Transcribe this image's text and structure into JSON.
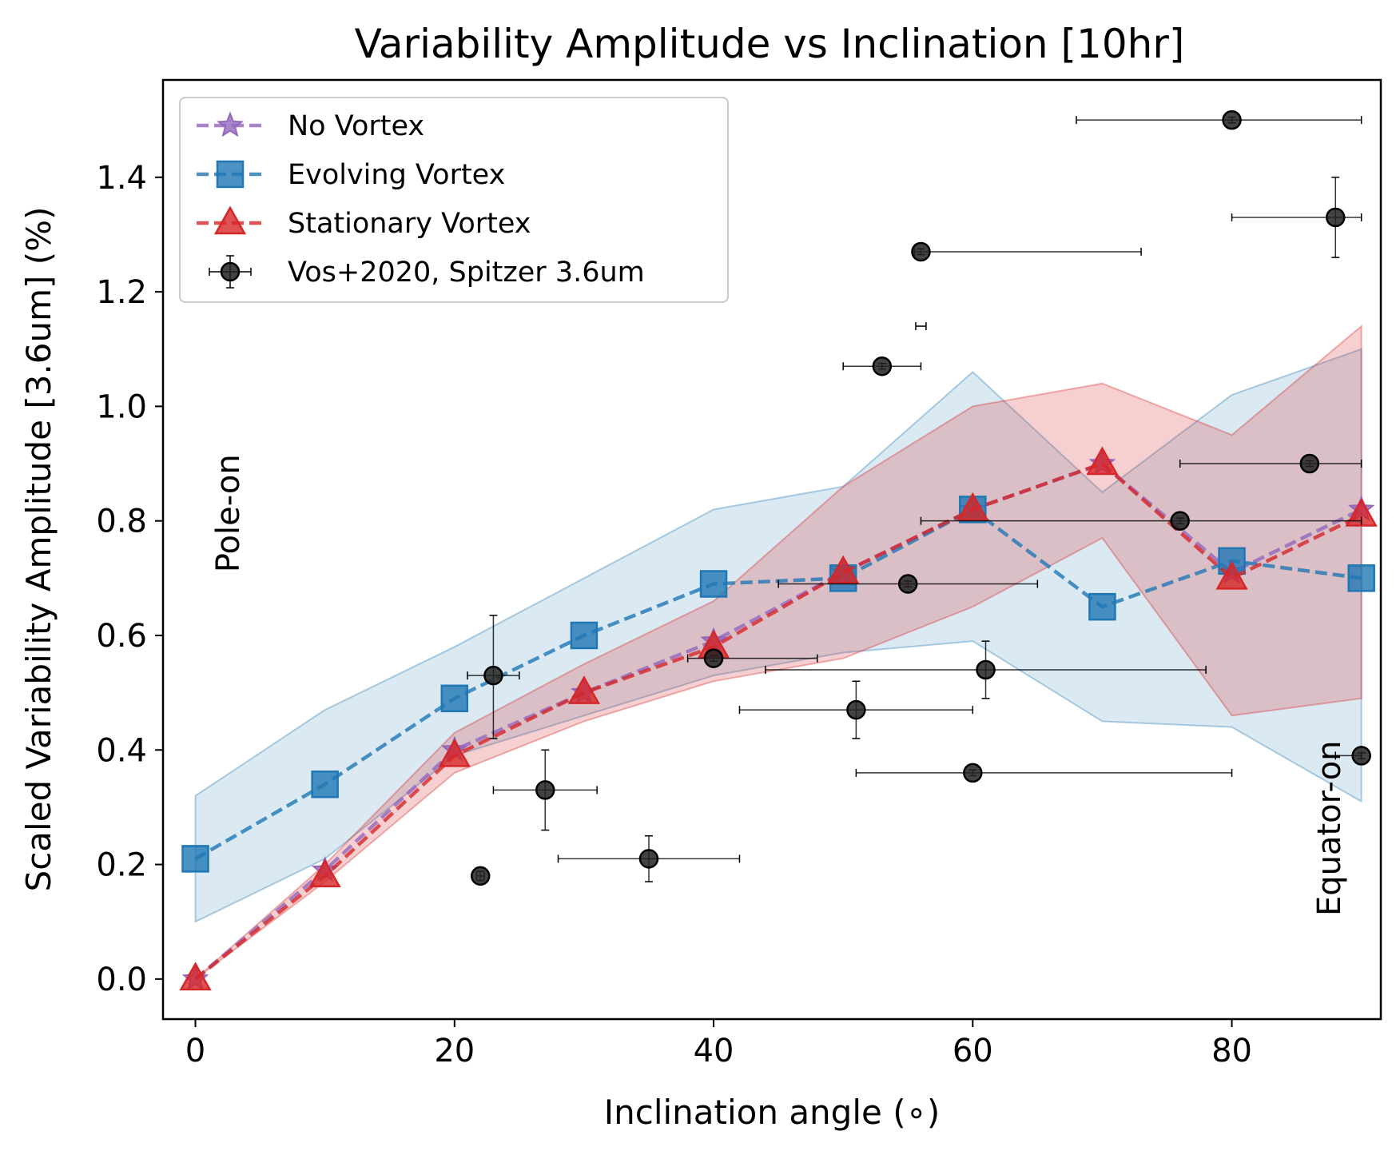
{
  "chart_data": {
    "type": "line",
    "title": "Variability Amplitude vs Inclination [10hr]",
    "xlabel": "Inclination angle ($^\\circ$)",
    "xlabel_display": "Inclination angle (∘)",
    "ylabel": "Scaled Variability Amplitude [3.6um] (%)",
    "xlim": [
      -2.5,
      91.5
    ],
    "ylim": [
      -0.07,
      1.57
    ],
    "xticks": [
      0,
      20,
      40,
      60,
      80
    ],
    "xtick_labels": [
      "0",
      "20",
      "40",
      "60",
      "80"
    ],
    "yticks": [
      0.0,
      0.2,
      0.4,
      0.6,
      0.8,
      1.0,
      1.2,
      1.4
    ],
    "ytick_labels": [
      "0.0",
      "0.2",
      "0.4",
      "0.6",
      "0.8",
      "1.0",
      "1.2",
      "1.4"
    ],
    "grid": false,
    "legend_position": "upper-left",
    "annotations": [
      {
        "text": "Pole-on",
        "x": 2.5,
        "y": 0.71,
        "rotation": -90
      },
      {
        "text": "Equator-on",
        "x": 87.5,
        "y": 0.11,
        "rotation": -90
      }
    ],
    "x": [
      0,
      10,
      20,
      30,
      40,
      50,
      60,
      70,
      80,
      90
    ],
    "series": [
      {
        "name": "No Vortex",
        "marker": "star",
        "color": "#9467bd",
        "values": [
          0.0,
          0.19,
          0.4,
          0.5,
          0.59,
          0.71,
          0.82,
          0.9,
          0.71,
          0.82
        ]
      },
      {
        "name": "Evolving Vortex",
        "marker": "square",
        "color": "#1f77b4",
        "values": [
          0.21,
          0.34,
          0.49,
          0.6,
          0.69,
          0.7,
          0.82,
          0.65,
          0.73,
          0.7
        ],
        "band_lower": [
          0.1,
          0.21,
          0.39,
          0.46,
          0.53,
          0.57,
          0.59,
          0.45,
          0.44,
          0.31
        ],
        "band_upper": [
          0.32,
          0.47,
          0.58,
          0.7,
          0.82,
          0.86,
          1.06,
          0.85,
          1.02,
          1.1
        ]
      },
      {
        "name": "Stationary Vortex",
        "marker": "triangle",
        "color": "#d62728",
        "values": [
          0.0,
          0.18,
          0.39,
          0.5,
          0.58,
          0.71,
          0.82,
          0.9,
          0.7,
          0.81
        ],
        "band_lower": [
          0.0,
          0.17,
          0.36,
          0.45,
          0.52,
          0.56,
          0.65,
          0.77,
          0.46,
          0.49
        ],
        "band_upper": [
          0.0,
          0.2,
          0.43,
          0.55,
          0.66,
          0.86,
          1.0,
          1.04,
          0.95,
          1.14
        ]
      }
    ],
    "observations": {
      "name": "Vos+2020, Spitzer 3.6um",
      "color": "#000000",
      "points": [
        {
          "x": 22,
          "y": 0.18,
          "xmin": 21.7,
          "xmax": 22.3,
          "ymin": 0.172,
          "ymax": 0.188
        },
        {
          "x": 23,
          "y": 0.53,
          "xmin": 21.0,
          "xmax": 25.0,
          "ymin": 0.42,
          "ymax": 0.635
        },
        {
          "x": 27,
          "y": 0.33,
          "xmin": 23.0,
          "xmax": 31.0,
          "ymin": 0.26,
          "ymax": 0.4
        },
        {
          "x": 35,
          "y": 0.21,
          "xmin": 28.0,
          "xmax": 42.0,
          "ymin": 0.17,
          "ymax": 0.25
        },
        {
          "x": 40,
          "y": 0.56,
          "xmin": 38.0,
          "xmax": 48.0,
          "ymin": 0.555,
          "ymax": 0.565
        },
        {
          "x": 51,
          "y": 0.47,
          "xmin": 42.0,
          "xmax": 60.0,
          "ymin": 0.42,
          "ymax": 0.52
        },
        {
          "x": 53,
          "y": 1.07,
          "xmin": 50.0,
          "xmax": 56.0,
          "ymin": 1.065,
          "ymax": 1.075
        },
        {
          "x": 55,
          "y": 0.69,
          "xmin": 45.0,
          "xmax": 65.0,
          "ymin": 0.685,
          "ymax": 0.695
        },
        {
          "x": 56,
          "y": 1.27,
          "xmin": 55.5,
          "xmax": 73.0,
          "ymin": 1.265,
          "ymax": 1.275
        },
        {
          "x": 60,
          "y": 0.36,
          "xmin": 51.0,
          "xmax": 80.0,
          "ymin": 0.355,
          "ymax": 0.365
        },
        {
          "x": 61,
          "y": 0.54,
          "xmin": 44.0,
          "xmax": 78.0,
          "ymin": 0.49,
          "ymax": 0.59
        },
        {
          "x": 76,
          "y": 0.8,
          "xmin": 56.0,
          "xmax": 90.0,
          "ymin": 0.795,
          "ymax": 0.805
        },
        {
          "x": 80,
          "y": 1.5,
          "xmin": 68.0,
          "xmax": 90.0,
          "ymin": 1.495,
          "ymax": 1.505
        },
        {
          "x": 86,
          "y": 0.9,
          "xmin": 76.0,
          "xmax": 90.0,
          "ymin": 0.895,
          "ymax": 0.905
        },
        {
          "x": 88,
          "y": 1.33,
          "xmin": 80.0,
          "xmax": 90.0,
          "ymin": 1.26,
          "ymax": 1.4
        },
        {
          "x": 90,
          "y": 0.39,
          "xmin": 88.0,
          "xmax": 90.0,
          "ymin": 0.385,
          "ymax": 0.395
        }
      ],
      "extra_errorbars": [
        {
          "x": 56,
          "y": 1.14,
          "xmin": 55.6,
          "xmax": 56.4
        }
      ]
    }
  }
}
